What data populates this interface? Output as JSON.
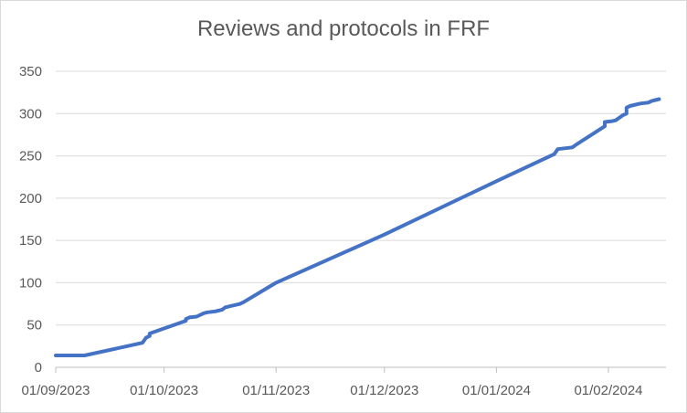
{
  "chart_data": {
    "type": "line",
    "title": "Reviews and protocols in FRF",
    "xlabel": "",
    "ylabel": "",
    "ylim": [
      0,
      350
    ],
    "y_ticks": [
      0,
      50,
      100,
      150,
      200,
      250,
      300,
      350
    ],
    "x_range": [
      "2023-09-01",
      "2024-02-15"
    ],
    "x_ticks": [
      {
        "date": "2023-09-01",
        "label": "01/09/2023"
      },
      {
        "date": "2023-10-01",
        "label": "01/10/2023"
      },
      {
        "date": "2023-11-01",
        "label": "01/11/2023"
      },
      {
        "date": "2023-12-01",
        "label": "01/12/2023"
      },
      {
        "date": "2024-01-01",
        "label": "01/01/2024"
      },
      {
        "date": "2024-02-01",
        "label": "01/02/2024"
      }
    ],
    "grid": true,
    "legend": "none",
    "line_color": "#4472c4",
    "series": [
      {
        "x": [
          "2023-09-01",
          "2023-09-09",
          "2023-09-25",
          "2023-09-26",
          "2023-09-27",
          "2023-09-27",
          "2023-10-07",
          "2023-10-07",
          "2023-10-08",
          "2023-10-10",
          "2023-10-12",
          "2023-10-13",
          "2023-10-15",
          "2023-10-16",
          "2023-10-17",
          "2023-10-18",
          "2023-10-20",
          "2023-10-22",
          "2023-10-23",
          "2023-11-01",
          "2023-12-01",
          "2024-01-01",
          "2024-01-17",
          "2024-01-18",
          "2024-01-22",
          "2024-01-23",
          "2024-01-31",
          "2024-01-31",
          "2024-02-02",
          "2024-02-03",
          "2024-02-04",
          "2024-02-05",
          "2024-02-06",
          "2024-02-06",
          "2024-02-07",
          "2024-02-08",
          "2024-02-09",
          "2024-02-10",
          "2024-02-12",
          "2024-02-13",
          "2024-02-14",
          "2024-02-15"
        ],
        "values": [
          14,
          14,
          29,
          35,
          37,
          40,
          55,
          57,
          59,
          60,
          64,
          65,
          66,
          67,
          68,
          71,
          73,
          75,
          77,
          100,
          157,
          220,
          252,
          258,
          260,
          263,
          285,
          290,
          291,
          292,
          295,
          298,
          300,
          307,
          309,
          310,
          311,
          312,
          313,
          315,
          316,
          317
        ]
      }
    ]
  }
}
